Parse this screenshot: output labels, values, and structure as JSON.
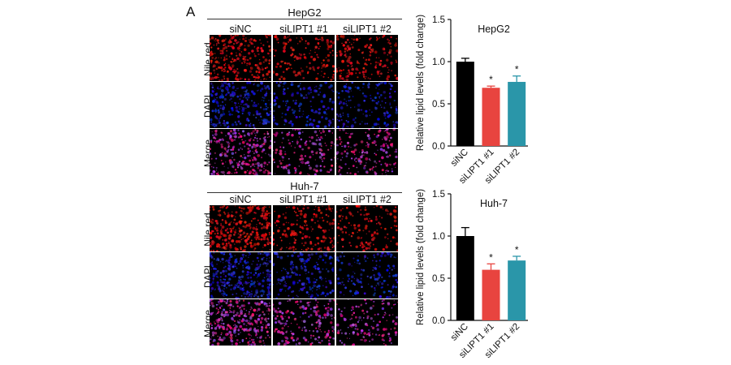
{
  "figure": {
    "panel_label": "A",
    "microscopy": [
      {
        "cell_line": "HepG2",
        "conditions": [
          "siNC",
          "siLIPT1 #1",
          "siLIPT1 #2"
        ],
        "stains": [
          "Nile red",
          "DAPI",
          "Merge"
        ]
      },
      {
        "cell_line": "Huh-7",
        "conditions": [
          "siNC",
          "siLIPT1 #1",
          "siLIPT1 #2"
        ],
        "stains": [
          "Nile red",
          "DAPI",
          "Merge"
        ]
      }
    ]
  },
  "colors": {
    "siNC": "#000000",
    "siLIPT1_1": "#e8443f",
    "siLIPT1_2": "#2a96a9",
    "nile_red": "#e0201c",
    "dapi": "#2f3fd0",
    "merge": "#b33fa0"
  },
  "chart_data": [
    {
      "type": "bar",
      "title": "HepG2",
      "ylabel": "Relative lipid levels (fold change)",
      "categories": [
        "siNC",
        "siLIPT1 #1",
        "siLIPT1 #2"
      ],
      "values": [
        1.0,
        0.69,
        0.76
      ],
      "errors": [
        0.04,
        0.02,
        0.07
      ],
      "significance": [
        "",
        "*",
        "*"
      ],
      "ylim": [
        0,
        1.5
      ],
      "yticks": [
        "0.0",
        "0.5",
        "1.0",
        "1.5"
      ],
      "colors": [
        "#000000",
        "#e8443f",
        "#2a96a9"
      ]
    },
    {
      "type": "bar",
      "title": "Huh-7",
      "ylabel": "Relative lipid levels (fold change)",
      "categories": [
        "siNC",
        "siLIPT1 #1",
        "siLIPT1 #2"
      ],
      "values": [
        1.0,
        0.6,
        0.71
      ],
      "errors": [
        0.1,
        0.07,
        0.05
      ],
      "significance": [
        "",
        "*",
        "*"
      ],
      "ylim": [
        0,
        1.5
      ],
      "yticks": [
        "0.0",
        "0.5",
        "1.0",
        "1.5"
      ],
      "colors": [
        "#000000",
        "#e8443f",
        "#2a96a9"
      ]
    }
  ]
}
